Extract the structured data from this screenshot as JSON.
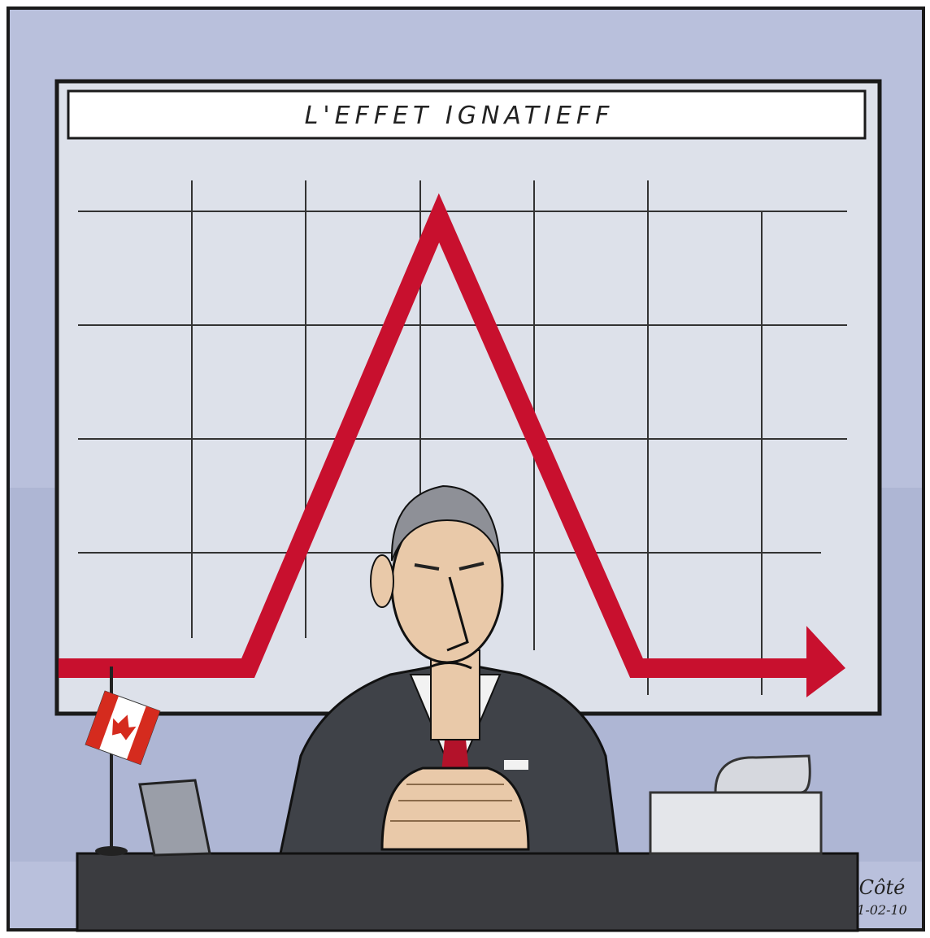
{
  "title": "L'EFFET IGNATIEFF",
  "signature": {
    "name": "Côté",
    "date": "1-02-10"
  }
}
